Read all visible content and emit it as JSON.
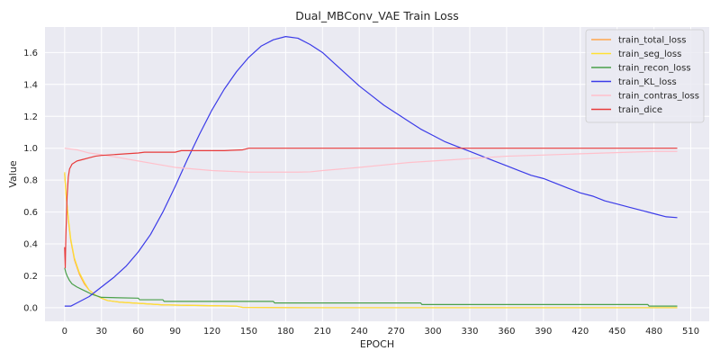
{
  "chart_data": {
    "type": "line",
    "title": "Dual_MBConv_VAE Train Loss",
    "xlabel": "EPOCH",
    "ylabel": "Value",
    "xlim": [
      -16,
      525
    ],
    "ylim": [
      -0.085,
      1.76
    ],
    "xticks": [
      0,
      30,
      60,
      90,
      120,
      150,
      180,
      210,
      240,
      270,
      300,
      330,
      360,
      390,
      420,
      450,
      480,
      510
    ],
    "yticks": [
      0.0,
      0.2,
      0.4,
      0.6,
      0.8,
      1.0,
      1.2,
      1.4,
      1.6
    ],
    "grid": true,
    "legend_position": "top-right",
    "background": "#eaeaf2",
    "series": [
      {
        "name": "train_total_loss",
        "color": "#ffa64d",
        "points": [
          [
            0,
            0.84
          ],
          [
            1,
            0.72
          ],
          [
            3,
            0.55
          ],
          [
            5,
            0.42
          ],
          [
            8,
            0.3
          ],
          [
            12,
            0.21
          ],
          [
            16,
            0.15
          ],
          [
            20,
            0.11
          ],
          [
            25,
            0.08
          ],
          [
            30,
            0.06
          ],
          [
            35,
            0.045
          ],
          [
            45,
            0.035
          ],
          [
            60,
            0.028
          ],
          [
            80,
            0.018
          ],
          [
            100,
            0.015
          ],
          [
            140,
            0.01
          ],
          [
            145,
            0.002
          ],
          [
            200,
            0.0
          ],
          [
            300,
            0.0
          ],
          [
            400,
            0.0
          ],
          [
            499,
            0.0
          ]
        ]
      },
      {
        "name": "train_seg_loss",
        "color": "#ffe033",
        "points": [
          [
            0,
            0.85
          ],
          [
            1,
            0.73
          ],
          [
            3,
            0.56
          ],
          [
            5,
            0.43
          ],
          [
            8,
            0.31
          ],
          [
            12,
            0.22
          ],
          [
            16,
            0.16
          ],
          [
            20,
            0.11
          ],
          [
            25,
            0.08
          ],
          [
            30,
            0.06
          ],
          [
            35,
            0.045
          ],
          [
            45,
            0.035
          ],
          [
            60,
            0.028
          ],
          [
            80,
            0.018
          ],
          [
            100,
            0.015
          ],
          [
            140,
            0.01
          ],
          [
            145,
            0.002
          ],
          [
            200,
            0.0
          ],
          [
            300,
            0.0
          ],
          [
            400,
            0.0
          ],
          [
            499,
            0.0
          ]
        ]
      },
      {
        "name": "train_recon_loss",
        "color": "#4aa04a",
        "points": [
          [
            0,
            0.25
          ],
          [
            1,
            0.22
          ],
          [
            2,
            0.2
          ],
          [
            4,
            0.17
          ],
          [
            6,
            0.15
          ],
          [
            10,
            0.13
          ],
          [
            14,
            0.115
          ],
          [
            18,
            0.1
          ],
          [
            22,
            0.085
          ],
          [
            26,
            0.075
          ],
          [
            30,
            0.065
          ],
          [
            60,
            0.06
          ],
          [
            61,
            0.05
          ],
          [
            80,
            0.05
          ],
          [
            81,
            0.04
          ],
          [
            170,
            0.04
          ],
          [
            171,
            0.03
          ],
          [
            290,
            0.03
          ],
          [
            291,
            0.02
          ],
          [
            475,
            0.02
          ],
          [
            476,
            0.01
          ],
          [
            499,
            0.01
          ]
        ]
      },
      {
        "name": "train_KL_loss",
        "color": "#3b3be8",
        "points": [
          [
            0,
            0.01
          ],
          [
            5,
            0.01
          ],
          [
            10,
            0.03
          ],
          [
            20,
            0.07
          ],
          [
            30,
            0.13
          ],
          [
            40,
            0.19
          ],
          [
            50,
            0.26
          ],
          [
            60,
            0.35
          ],
          [
            70,
            0.46
          ],
          [
            80,
            0.6
          ],
          [
            90,
            0.76
          ],
          [
            100,
            0.93
          ],
          [
            110,
            1.09
          ],
          [
            120,
            1.24
          ],
          [
            130,
            1.37
          ],
          [
            140,
            1.48
          ],
          [
            150,
            1.57
          ],
          [
            160,
            1.64
          ],
          [
            170,
            1.68
          ],
          [
            180,
            1.7
          ],
          [
            190,
            1.69
          ],
          [
            200,
            1.65
          ],
          [
            210,
            1.6
          ],
          [
            220,
            1.53
          ],
          [
            230,
            1.46
          ],
          [
            240,
            1.39
          ],
          [
            250,
            1.33
          ],
          [
            260,
            1.27
          ],
          [
            270,
            1.22
          ],
          [
            280,
            1.17
          ],
          [
            290,
            1.12
          ],
          [
            300,
            1.08
          ],
          [
            310,
            1.04
          ],
          [
            320,
            1.01
          ],
          [
            330,
            0.98
          ],
          [
            340,
            0.95
          ],
          [
            350,
            0.92
          ],
          [
            360,
            0.89
          ],
          [
            370,
            0.86
          ],
          [
            380,
            0.83
          ],
          [
            390,
            0.81
          ],
          [
            400,
            0.78
          ],
          [
            410,
            0.75
          ],
          [
            420,
            0.72
          ],
          [
            430,
            0.7
          ],
          [
            440,
            0.67
          ],
          [
            450,
            0.65
          ],
          [
            460,
            0.63
          ],
          [
            470,
            0.61
          ],
          [
            480,
            0.59
          ],
          [
            490,
            0.57
          ],
          [
            499,
            0.565
          ]
        ]
      },
      {
        "name": "train_contras_loss",
        "color": "#ffc0cb",
        "points": [
          [
            0,
            1.0
          ],
          [
            10,
            0.99
          ],
          [
            20,
            0.97
          ],
          [
            30,
            0.96
          ],
          [
            45,
            0.94
          ],
          [
            60,
            0.92
          ],
          [
            75,
            0.9
          ],
          [
            90,
            0.88
          ],
          [
            105,
            0.87
          ],
          [
            120,
            0.86
          ],
          [
            135,
            0.855
          ],
          [
            150,
            0.85
          ],
          [
            170,
            0.85
          ],
          [
            190,
            0.85
          ],
          [
            200,
            0.852
          ],
          [
            210,
            0.86
          ],
          [
            225,
            0.87
          ],
          [
            240,
            0.88
          ],
          [
            260,
            0.895
          ],
          [
            280,
            0.91
          ],
          [
            300,
            0.92
          ],
          [
            320,
            0.93
          ],
          [
            340,
            0.94
          ],
          [
            360,
            0.95
          ],
          [
            380,
            0.955
          ],
          [
            400,
            0.96
          ],
          [
            420,
            0.965
          ],
          [
            440,
            0.97
          ],
          [
            460,
            0.975
          ],
          [
            480,
            0.98
          ],
          [
            499,
            0.98
          ]
        ]
      },
      {
        "name": "train_dice",
        "color": "#e83b3b",
        "points": [
          [
            0,
            0.38
          ],
          [
            0.5,
            0.25
          ],
          [
            1,
            0.45
          ],
          [
            2,
            0.7
          ],
          [
            3,
            0.82
          ],
          [
            4,
            0.87
          ],
          [
            6,
            0.9
          ],
          [
            10,
            0.92
          ],
          [
            15,
            0.93
          ],
          [
            20,
            0.94
          ],
          [
            25,
            0.95
          ],
          [
            30,
            0.955
          ],
          [
            40,
            0.96
          ],
          [
            50,
            0.965
          ],
          [
            60,
            0.97
          ],
          [
            65,
            0.975
          ],
          [
            90,
            0.975
          ],
          [
            95,
            0.985
          ],
          [
            130,
            0.985
          ],
          [
            145,
            0.99
          ],
          [
            150,
            1.0
          ],
          [
            200,
            1.0
          ],
          [
            300,
            1.0
          ],
          [
            400,
            1.0
          ],
          [
            499,
            1.0
          ]
        ]
      }
    ]
  }
}
